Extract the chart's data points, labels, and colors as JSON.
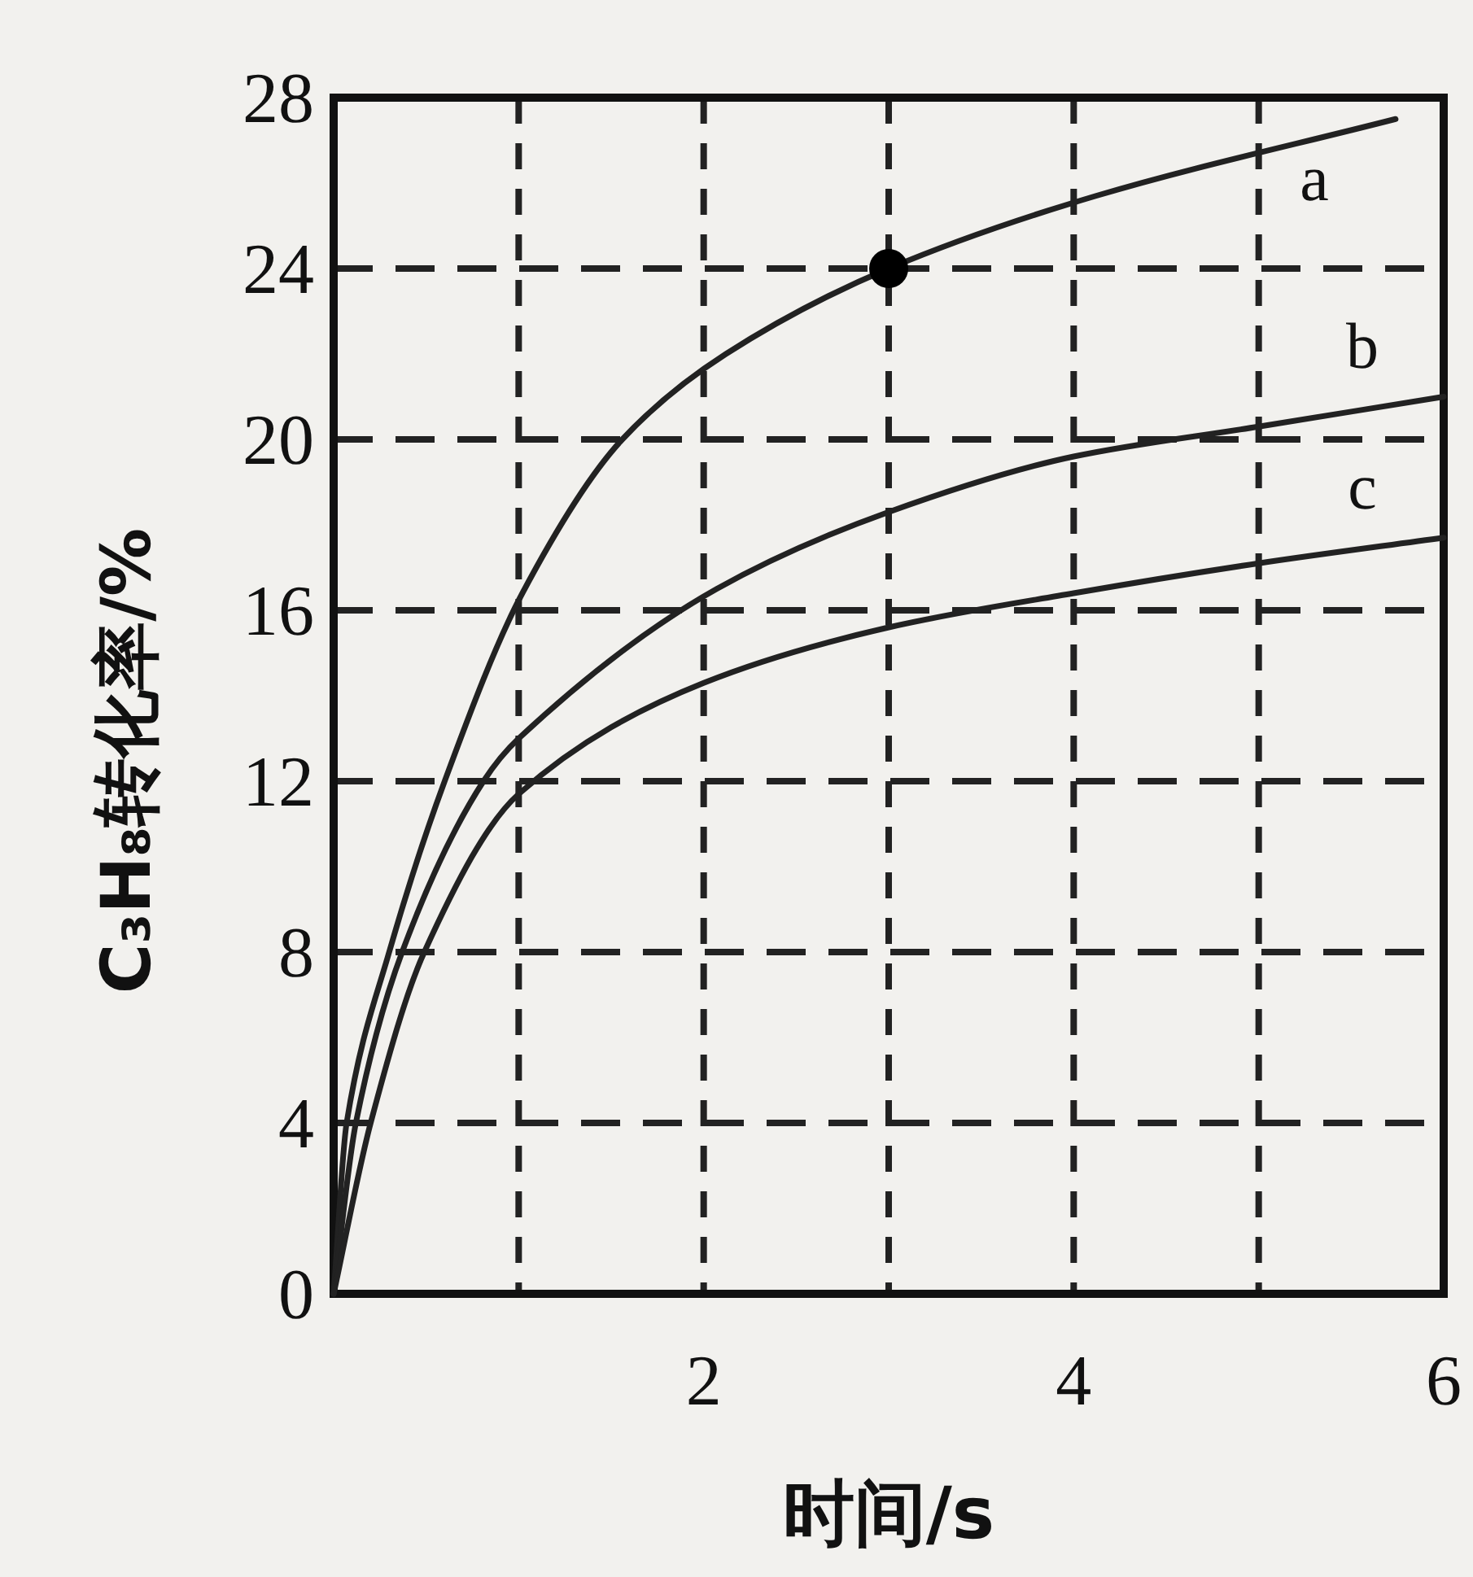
{
  "chart_data": {
    "type": "line",
    "xlabel": "时间/s",
    "ylabel": "C₃H₈转化率/%",
    "xlim": [
      0,
      6
    ],
    "ylim": [
      0,
      28
    ],
    "xticks": [
      {
        "value": 0,
        "label": null
      },
      {
        "value": 1,
        "label": null
      },
      2,
      {
        "value": 3,
        "label": null
      },
      4,
      {
        "value": 5,
        "label": null
      },
      6
    ],
    "yticks": [
      0,
      4,
      8,
      12,
      16,
      20,
      24,
      28
    ],
    "grid": true,
    "marker": "none",
    "line_style": "solid",
    "series": [
      {
        "name": "a",
        "color": "#222222",
        "x": [
          0,
          0.07,
          0.3,
          0.6,
          1.02,
          1.56,
          2.12,
          3,
          4.12,
          5.74
        ],
        "values": [
          0,
          4,
          8,
          12,
          16.4,
          20,
          22,
          24,
          25.7,
          27.5
        ]
      },
      {
        "name": "b",
        "color": "#222222",
        "x": [
          0,
          0.12,
          0.37,
          0.81,
          1,
          2.07,
          3,
          4,
          5,
          6
        ],
        "values": [
          0,
          4,
          8,
          12,
          13,
          16.5,
          18.3,
          19.6,
          20.3,
          21
        ]
      },
      {
        "name": "c",
        "color": "#222222",
        "x": [
          0,
          0.2,
          0.49,
          1,
          2,
          3,
          4,
          5,
          6
        ],
        "values": [
          0,
          4,
          8,
          11.7,
          14.3,
          15.6,
          16.4,
          17.1,
          17.7
        ]
      },
      {
        "type": "scatter",
        "color": "#000000",
        "marker": "circle",
        "x": [
          3
        ],
        "values": [
          24
        ]
      }
    ]
  }
}
